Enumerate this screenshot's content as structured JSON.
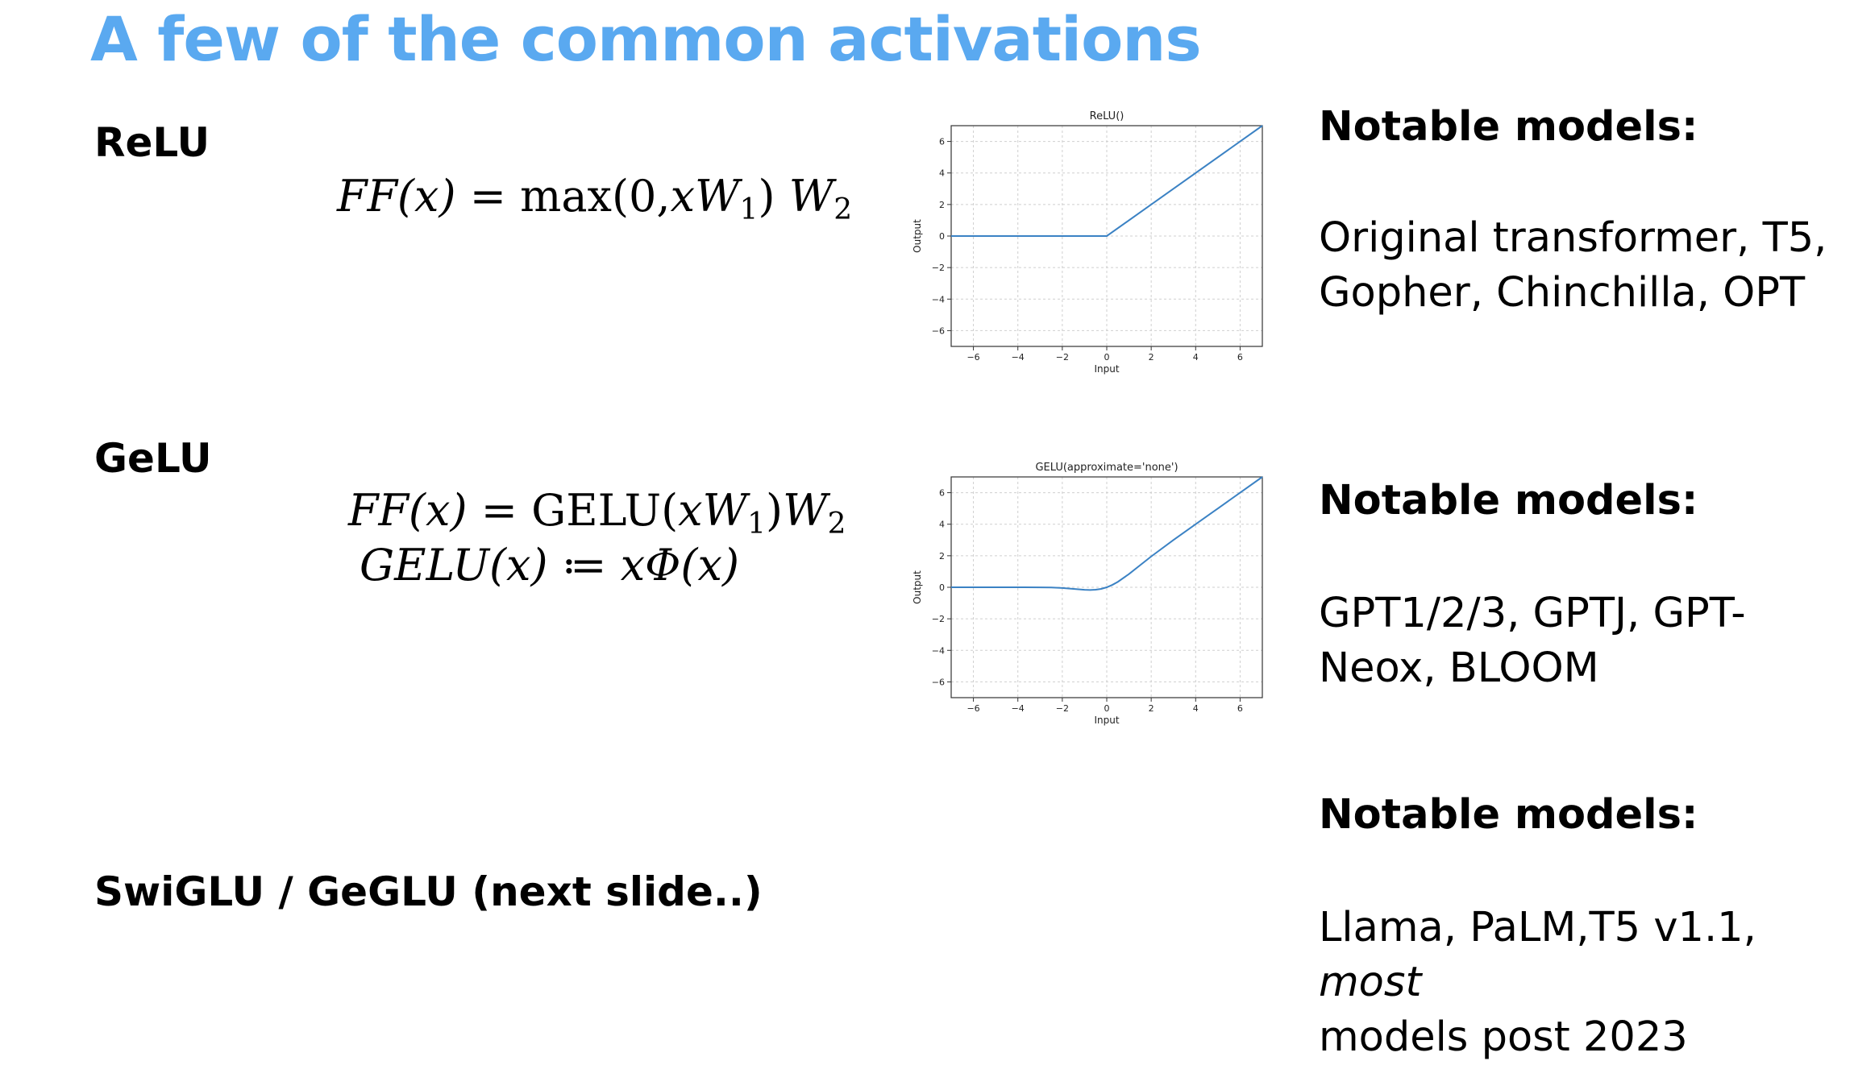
{
  "slide": {
    "title": "A few of the common activations"
  },
  "relu": {
    "label": "ReLU",
    "formula": {
      "lhs": "FF(x)",
      "eq": "=",
      "fn": "max(0,",
      "arg": "xW",
      "arg_sub": "1",
      "close": ")",
      "w": "W",
      "w_sub": "2"
    },
    "notable_heading": "Notable models:",
    "notable_models": "Original transformer, T5, Gopher, Chinchilla, OPT"
  },
  "gelu": {
    "label": "GeLU",
    "formula1": {
      "lhs": "FF(x)",
      "eq": "=",
      "fn": "GELU(",
      "arg": "xW",
      "arg_sub": "1",
      "close": ")",
      "w": "W",
      "w_sub": "2"
    },
    "formula2": {
      "lhs": "GELU(x)",
      "eq": "≔",
      "rhs": "xΦ(x)"
    },
    "notable_heading": "Notable models:",
    "notable_models": "GPT1/2/3, GPTJ, GPT-Neox, BLOOM"
  },
  "swiglu": {
    "label": "SwiGLU / GeGLU (next slide..)",
    "notable_heading": "Notable models:",
    "notable_models_1": "Llama, PaLM,T5 v1.1, ",
    "notable_models_em": "most",
    "notable_models_2": "models post 2023"
  },
  "chart_data": [
    {
      "type": "line",
      "title": "ReLU()",
      "xlabel": "Input",
      "ylabel": "Output",
      "xlim": [
        -7,
        7
      ],
      "ylim": [
        -7,
        7
      ],
      "xticks": [
        -6,
        -4,
        -2,
        0,
        2,
        4,
        6
      ],
      "yticks": [
        -6,
        -4,
        -2,
        0,
        2,
        4,
        6
      ],
      "grid": true,
      "line_color": "#3b82c4",
      "series": [
        {
          "x": [
            -7,
            0,
            7
          ],
          "y": [
            0,
            0,
            7
          ]
        }
      ]
    },
    {
      "type": "line",
      "title": "GELU(approximate='none')",
      "xlabel": "Input",
      "ylabel": "Output",
      "xlim": [
        -7,
        7
      ],
      "ylim": [
        -7,
        7
      ],
      "xticks": [
        -6,
        -4,
        -2,
        0,
        2,
        4,
        6
      ],
      "yticks": [
        -6,
        -4,
        -2,
        0,
        2,
        4,
        6
      ],
      "grid": true,
      "line_color": "#3b82c4",
      "series": [
        {
          "x": [
            -7,
            -5,
            -4,
            -3,
            -2.5,
            -2,
            -1.5,
            -1,
            -0.75,
            -0.5,
            -0.25,
            0,
            0.25,
            0.5,
            1,
            1.5,
            2,
            3,
            4,
            5,
            7
          ],
          "y": [
            0,
            0,
            -0.0001,
            -0.004,
            -0.016,
            -0.045,
            -0.1,
            -0.159,
            -0.17,
            -0.154,
            -0.1,
            0,
            0.15,
            0.346,
            0.841,
            1.4,
            1.955,
            2.996,
            4,
            5,
            7
          ]
        }
      ]
    }
  ]
}
